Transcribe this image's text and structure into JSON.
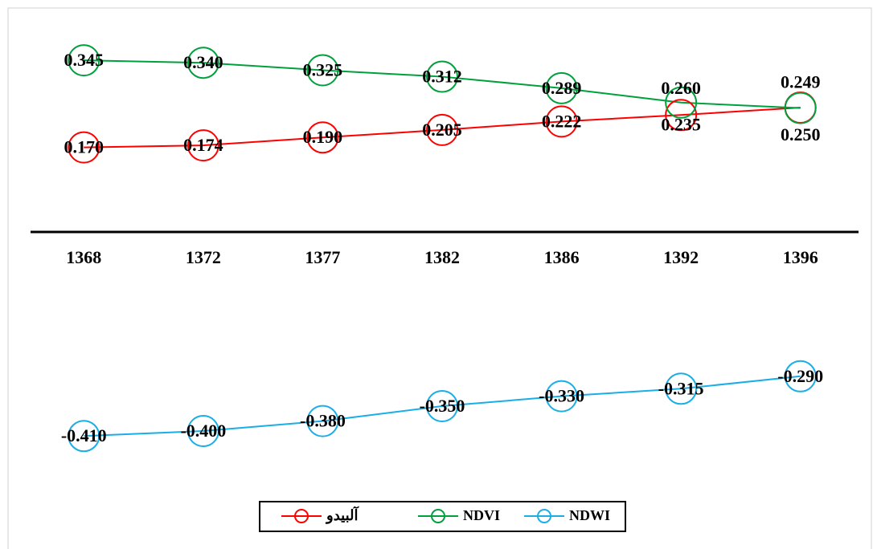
{
  "chart_data": {
    "type": "line",
    "categories": [
      "1368",
      "1372",
      "1377",
      "1382",
      "1386",
      "1392",
      "1396"
    ],
    "series": [
      {
        "name": "آلبیدو",
        "color": "#ff0000",
        "values": [
          0.17,
          0.174,
          0.19,
          0.205,
          0.222,
          0.235,
          0.25
        ],
        "value_labels": [
          "0.170",
          "0.174",
          "0.190",
          "0.205",
          "0.222",
          "0.235",
          "0.250"
        ]
      },
      {
        "name": "NDVI",
        "color": "#00a03c",
        "values": [
          0.345,
          0.34,
          0.325,
          0.312,
          0.289,
          0.26,
          0.249
        ],
        "value_labels": [
          "0.345",
          "0.340",
          "0.325",
          "0.312",
          "0.289",
          "0.260",
          "0.249"
        ]
      },
      {
        "name": "NDWI",
        "color": "#19aee6",
        "values": [
          -0.41,
          -0.4,
          -0.38,
          -0.35,
          -0.33,
          -0.315,
          -0.29
        ],
        "value_labels": [
          "-0.410",
          "-0.400",
          "-0.380",
          "-0.350",
          "-0.330",
          "-0.315",
          "-0.290"
        ]
      }
    ],
    "ylim": [
      -0.5,
      0.4
    ]
  }
}
